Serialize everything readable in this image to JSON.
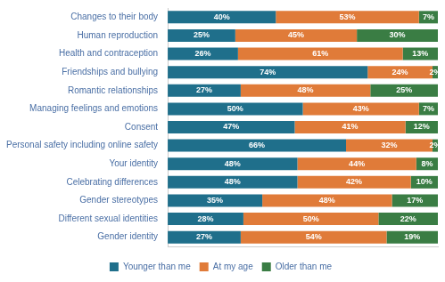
{
  "chart_data": {
    "type": "bar",
    "orientation": "horizontal",
    "stacked": true,
    "categories": [
      "Changes to their body",
      "Human reproduction",
      "Health and contraception",
      "Friendships and bullying",
      "Romantic relationships",
      "Managing feelings and emotions",
      "Consent",
      "Personal safety including online safety",
      "Your identity",
      "Celebrating differences",
      "Gender stereotypes",
      "Different sexual identities",
      "Gender identity"
    ],
    "series": [
      {
        "name": "Younger than me",
        "color": "#1f6f8b",
        "values": [
          40,
          25,
          26,
          74,
          27,
          50,
          47,
          66,
          48,
          48,
          35,
          28,
          27
        ],
        "value_labels": [
          "40%",
          "25%",
          "26%",
          "74%",
          "27%",
          "50%",
          "47%",
          "66%",
          "48%",
          "48%",
          "35%",
          "28%",
          "27%"
        ]
      },
      {
        "name": "At my age",
        "color": "#e07b39",
        "values": [
          53,
          45,
          61,
          24,
          48,
          43,
          41,
          32,
          44,
          42,
          48,
          50,
          54
        ],
        "value_labels": [
          "53%",
          "45%",
          "61%",
          "24%",
          "48%",
          "43%",
          "41%",
          "32%",
          "44%",
          "42%",
          "48%",
          "50%",
          "54%"
        ]
      },
      {
        "name": "Older than me",
        "color": "#3a7d44",
        "values": [
          7,
          30,
          13,
          2,
          25,
          7,
          12,
          2,
          8,
          10,
          17,
          22,
          19
        ],
        "value_labels": [
          "7%",
          "30%",
          "13%",
          "2%",
          "25%",
          "7%",
          "12%",
          "2%",
          "8%",
          "10%",
          "17%",
          "22%",
          "19%"
        ]
      }
    ],
    "xlim": [
      0,
      100
    ],
    "xticks": [],
    "grid": false,
    "legend": "bottom",
    "data_labels": true,
    "tick_labels": "y"
  }
}
